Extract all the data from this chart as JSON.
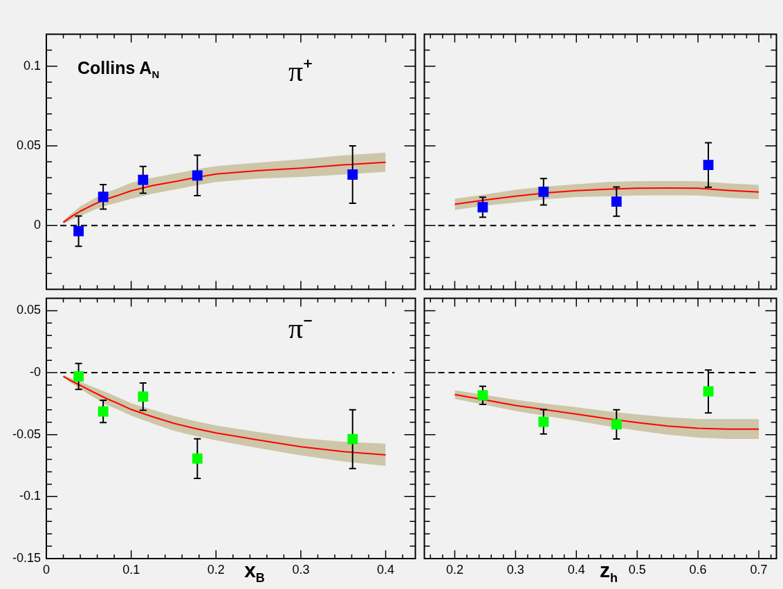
{
  "chart_data": [
    {
      "type": "scatter",
      "xlim": [
        0,
        0.435
      ],
      "ylim": [
        -0.04,
        0.12
      ],
      "tick_labels": "y",
      "marker": "square",
      "grid": false,
      "legend": false,
      "xticks": [
        0,
        {
          "value": 0.02,
          "label": null
        },
        {
          "value": 0.04,
          "label": null
        },
        {
          "value": 0.06,
          "label": null
        },
        {
          "value": 0.08,
          "label": null
        },
        0.1,
        {
          "value": 0.12,
          "label": null
        },
        {
          "value": 0.14,
          "label": null
        },
        {
          "value": 0.16,
          "label": null
        },
        {
          "value": 0.18,
          "label": null
        },
        0.2,
        {
          "value": 0.22,
          "label": null
        },
        {
          "value": 0.24,
          "label": null
        },
        {
          "value": 0.26,
          "label": null
        },
        {
          "value": 0.28,
          "label": null
        },
        0.3,
        {
          "value": 0.32,
          "label": null
        },
        {
          "value": 0.34,
          "label": null
        },
        {
          "value": 0.36,
          "label": null
        },
        {
          "value": 0.38,
          "label": null
        },
        0.4,
        {
          "value": 0.42,
          "label": null
        }
      ],
      "yticks": [
        {
          "value": -0.03,
          "label": null
        },
        {
          "value": -0.02,
          "label": null
        },
        {
          "value": -0.01,
          "label": null
        },
        0,
        {
          "value": 0.01,
          "label": null
        },
        {
          "value": 0.02,
          "label": null
        },
        {
          "value": 0.03,
          "label": null
        },
        {
          "value": 0.04,
          "label": null
        },
        0.05,
        {
          "value": 0.06,
          "label": null
        },
        {
          "value": 0.07,
          "label": null
        },
        {
          "value": 0.08,
          "label": null
        },
        {
          "value": 0.09,
          "label": null
        },
        0.1,
        {
          "value": 0.11,
          "label": null
        }
      ],
      "series": [
        {
          "x": [
            0.038,
            0.067,
            0.114,
            0.178,
            0.361
          ],
          "values": [
            -0.0035,
            0.018,
            0.0287,
            0.0314,
            0.032
          ],
          "errors": [
            0.0095,
            0.0077,
            0.0084,
            0.0127,
            0.018
          ],
          "color": "#0000ff"
        },
        {
          "type": "line",
          "marker": "none",
          "color": "#ff0000",
          "x": [
            0.02,
            0.03,
            0.04,
            0.055,
            0.07,
            0.085,
            0.1,
            0.125,
            0.15,
            0.175,
            0.2,
            0.25,
            0.3,
            0.35,
            0.4
          ],
          "values": [
            0.002,
            0.0058,
            0.009,
            0.013,
            0.0165,
            0.019,
            0.0218,
            0.025,
            0.0274,
            0.03,
            0.0323,
            0.0345,
            0.036,
            0.038,
            0.0397
          ],
          "lower": [
            0.001,
            0.0038,
            0.006,
            0.0095,
            0.0125,
            0.0145,
            0.0168,
            0.02,
            0.0224,
            0.025,
            0.0273,
            0.0295,
            0.0305,
            0.032,
            0.0337
          ],
          "upper": [
            0.003,
            0.0078,
            0.012,
            0.0165,
            0.0205,
            0.0235,
            0.0268,
            0.03,
            0.0324,
            0.035,
            0.0373,
            0.0395,
            0.0415,
            0.044,
            0.0457
          ]
        }
      ],
      "ref_lines": [
        {
          "axis": "y",
          "value": 0,
          "line_style": "dashed",
          "color": "#000000"
        }
      ],
      "annotations": [
        "Collins A$_{N}$",
        "π⁺"
      ]
    },
    {
      "type": "scatter",
      "xlim": [
        0.15,
        0.729
      ],
      "ylim": [
        -0.04,
        0.12
      ],
      "tick_labels": false,
      "marker": "square",
      "grid": false,
      "legend": false,
      "xticks": [
        {
          "value": 0.16,
          "label": null
        },
        {
          "value": 0.18,
          "label": null
        },
        0.2,
        {
          "value": 0.22,
          "label": null
        },
        {
          "value": 0.24,
          "label": null
        },
        {
          "value": 0.26,
          "label": null
        },
        {
          "value": 0.28,
          "label": null
        },
        0.3,
        {
          "value": 0.32,
          "label": null
        },
        {
          "value": 0.34,
          "label": null
        },
        {
          "value": 0.36,
          "label": null
        },
        {
          "value": 0.38,
          "label": null
        },
        0.4,
        {
          "value": 0.42,
          "label": null
        },
        {
          "value": 0.44,
          "label": null
        },
        {
          "value": 0.46,
          "label": null
        },
        {
          "value": 0.48,
          "label": null
        },
        0.5,
        {
          "value": 0.52,
          "label": null
        },
        {
          "value": 0.54,
          "label": null
        },
        {
          "value": 0.56,
          "label": null
        },
        {
          "value": 0.58,
          "label": null
        },
        0.6,
        {
          "value": 0.62,
          "label": null
        },
        {
          "value": 0.64,
          "label": null
        },
        {
          "value": 0.66,
          "label": null
        },
        {
          "value": 0.68,
          "label": null
        },
        0.7,
        {
          "value": 0.72,
          "label": null
        }
      ],
      "yticks": [
        {
          "value": -0.03,
          "label": null
        },
        {
          "value": -0.02,
          "label": null
        },
        {
          "value": -0.01,
          "label": null
        },
        0,
        {
          "value": 0.01,
          "label": null
        },
        {
          "value": 0.02,
          "label": null
        },
        {
          "value": 0.03,
          "label": null
        },
        {
          "value": 0.04,
          "label": null
        },
        0.05,
        {
          "value": 0.06,
          "label": null
        },
        {
          "value": 0.07,
          "label": null
        },
        {
          "value": 0.08,
          "label": null
        },
        {
          "value": 0.09,
          "label": null
        },
        0.1,
        {
          "value": 0.11,
          "label": null
        }
      ],
      "series": [
        {
          "x": [
            0.246,
            0.346,
            0.466,
            0.617
          ],
          "values": [
            0.0115,
            0.0212,
            0.015,
            0.038
          ],
          "errors": [
            0.0063,
            0.0083,
            0.0092,
            0.0139
          ],
          "color": "#0000ff"
        },
        {
          "type": "line",
          "marker": "none",
          "color": "#ff0000",
          "x": [
            0.2,
            0.25,
            0.3,
            0.35,
            0.4,
            0.45,
            0.5,
            0.55,
            0.6,
            0.65,
            0.7
          ],
          "values": [
            0.0133,
            0.016,
            0.0184,
            0.0205,
            0.0219,
            0.0228,
            0.0234,
            0.0235,
            0.0234,
            0.022,
            0.021
          ],
          "lower": [
            0.0098,
            0.0125,
            0.0144,
            0.0165,
            0.0179,
            0.0183,
            0.0189,
            0.019,
            0.0189,
            0.0175,
            0.0165
          ],
          "upper": [
            0.0168,
            0.0195,
            0.0224,
            0.0245,
            0.0259,
            0.0273,
            0.0279,
            0.028,
            0.0279,
            0.0265,
            0.0255
          ]
        }
      ],
      "ref_lines": [
        {
          "axis": "y",
          "value": 0,
          "line_style": "dashed",
          "color": "#000000"
        }
      ]
    },
    {
      "type": "scatter",
      "xlim": [
        0,
        0.435
      ],
      "ylim": [
        -0.15,
        0.06
      ],
      "marker": "square",
      "grid": false,
      "legend": false,
      "xlabel": "x$_{B}$",
      "xticks": [
        0,
        {
          "value": 0.02,
          "label": null
        },
        {
          "value": 0.04,
          "label": null
        },
        {
          "value": 0.06,
          "label": null
        },
        {
          "value": 0.08,
          "label": null
        },
        0.1,
        {
          "value": 0.12,
          "label": null
        },
        {
          "value": 0.14,
          "label": null
        },
        {
          "value": 0.16,
          "label": null
        },
        {
          "value": 0.18,
          "label": null
        },
        0.2,
        {
          "value": 0.22,
          "label": null
        },
        {
          "value": 0.24,
          "label": null
        },
        {
          "value": 0.26,
          "label": null
        },
        {
          "value": 0.28,
          "label": null
        },
        0.3,
        {
          "value": 0.32,
          "label": null
        },
        {
          "value": 0.34,
          "label": null
        },
        {
          "value": 0.36,
          "label": null
        },
        {
          "value": 0.38,
          "label": null
        },
        0.4,
        {
          "value": 0.42,
          "label": null
        }
      ],
      "yticks": [
        -0.15,
        {
          "value": -0.14,
          "label": null
        },
        {
          "value": -0.13,
          "label": null
        },
        {
          "value": -0.12,
          "label": null
        },
        {
          "value": -0.11,
          "label": null
        },
        -0.1,
        {
          "value": -0.09,
          "label": null
        },
        {
          "value": -0.08,
          "label": null
        },
        {
          "value": -0.07,
          "label": null
        },
        {
          "value": -0.06,
          "label": null
        },
        -0.05,
        {
          "value": -0.04,
          "label": null
        },
        {
          "value": -0.03,
          "label": null
        },
        {
          "value": -0.02,
          "label": null
        },
        {
          "value": -0.01,
          "label": null
        },
        {
          "value": 0,
          "label": "-0"
        },
        {
          "value": 0.01,
          "label": null
        },
        {
          "value": 0.02,
          "label": null
        },
        {
          "value": 0.03,
          "label": null
        },
        {
          "value": 0.04,
          "label": null
        },
        0.05
      ],
      "series": [
        {
          "x": [
            0.038,
            0.067,
            0.114,
            0.178,
            0.361
          ],
          "values": [
            -0.003,
            -0.0313,
            -0.0193,
            -0.0693,
            -0.0536
          ],
          "errors": [
            0.0105,
            0.009,
            0.011,
            0.016,
            0.0237
          ],
          "color": "#00ff00"
        },
        {
          "type": "line",
          "marker": "none",
          "color": "#ff0000",
          "x": [
            0.02,
            0.03,
            0.04,
            0.055,
            0.07,
            0.085,
            0.1,
            0.125,
            0.15,
            0.175,
            0.2,
            0.25,
            0.3,
            0.35,
            0.4
          ],
          "values": [
            -0.003,
            -0.0068,
            -0.0102,
            -0.0155,
            -0.0206,
            -0.025,
            -0.0297,
            -0.0355,
            -0.0408,
            -0.045,
            -0.0486,
            -0.0544,
            -0.0598,
            -0.0637,
            -0.0663
          ],
          "lower": [
            -0.004,
            -0.0088,
            -0.0132,
            -0.0195,
            -0.0256,
            -0.03,
            -0.0347,
            -0.041,
            -0.0468,
            -0.051,
            -0.0546,
            -0.0609,
            -0.0668,
            -0.0717,
            -0.0753
          ],
          "upper": [
            -0.002,
            -0.0048,
            -0.0072,
            -0.0115,
            -0.0156,
            -0.02,
            -0.0247,
            -0.03,
            -0.0348,
            -0.039,
            -0.0426,
            -0.0479,
            -0.0528,
            -0.0557,
            -0.0573
          ]
        }
      ],
      "ref_lines": [
        {
          "axis": "y",
          "value": 0,
          "line_style": "dashed",
          "color": "#000000"
        }
      ],
      "annotations": [
        "π⁻"
      ]
    },
    {
      "type": "scatter",
      "xlim": [
        0.15,
        0.729
      ],
      "ylim": [
        -0.15,
        0.06
      ],
      "tick_labels": "x",
      "marker": "square",
      "grid": false,
      "legend": false,
      "xlabel": "z$_{h}$",
      "xticks": [
        {
          "value": 0.16,
          "label": null
        },
        {
          "value": 0.18,
          "label": null
        },
        0.2,
        {
          "value": 0.22,
          "label": null
        },
        {
          "value": 0.24,
          "label": null
        },
        {
          "value": 0.26,
          "label": null
        },
        {
          "value": 0.28,
          "label": null
        },
        0.3,
        {
          "value": 0.32,
          "label": null
        },
        {
          "value": 0.34,
          "label": null
        },
        {
          "value": 0.36,
          "label": null
        },
        {
          "value": 0.38,
          "label": null
        },
        0.4,
        {
          "value": 0.42,
          "label": null
        },
        {
          "value": 0.44,
          "label": null
        },
        {
          "value": 0.46,
          "label": null
        },
        {
          "value": 0.48,
          "label": null
        },
        0.5,
        {
          "value": 0.52,
          "label": null
        },
        {
          "value": 0.54,
          "label": null
        },
        {
          "value": 0.56,
          "label": null
        },
        {
          "value": 0.58,
          "label": null
        },
        0.6,
        {
          "value": 0.62,
          "label": null
        },
        {
          "value": 0.64,
          "label": null
        },
        {
          "value": 0.66,
          "label": null
        },
        {
          "value": 0.68,
          "label": null
        },
        0.7,
        {
          "value": 0.72,
          "label": null
        }
      ],
      "yticks": [
        -0.15,
        {
          "value": -0.14,
          "label": null
        },
        {
          "value": -0.13,
          "label": null
        },
        {
          "value": -0.12,
          "label": null
        },
        {
          "value": -0.11,
          "label": null
        },
        -0.1,
        {
          "value": -0.09,
          "label": null
        },
        {
          "value": -0.08,
          "label": null
        },
        {
          "value": -0.07,
          "label": null
        },
        {
          "value": -0.06,
          "label": null
        },
        -0.05,
        {
          "value": -0.04,
          "label": null
        },
        {
          "value": -0.03,
          "label": null
        },
        {
          "value": -0.02,
          "label": null
        },
        {
          "value": -0.01,
          "label": null
        },
        0,
        {
          "value": 0.01,
          "label": null
        },
        {
          "value": 0.02,
          "label": null
        },
        {
          "value": 0.03,
          "label": null
        },
        {
          "value": 0.04,
          "label": null
        },
        0.05
      ],
      "series": [
        {
          "x": [
            0.246,
            0.346,
            0.466,
            0.617
          ],
          "values": [
            -0.0183,
            -0.0396,
            -0.0417,
            -0.0151
          ],
          "errors": [
            0.0073,
            0.0098,
            0.0118,
            0.0173
          ],
          "color": "#00ff00"
        },
        {
          "type": "line",
          "marker": "none",
          "color": "#ff0000",
          "x": [
            0.2,
            0.25,
            0.3,
            0.35,
            0.4,
            0.45,
            0.5,
            0.55,
            0.6,
            0.65,
            0.7
          ],
          "values": [
            -0.0177,
            -0.022,
            -0.0264,
            -0.03,
            -0.0334,
            -0.037,
            -0.0402,
            -0.043,
            -0.0449,
            -0.0455,
            -0.0455
          ],
          "lower": [
            -0.0212,
            -0.026,
            -0.0309,
            -0.035,
            -0.0389,
            -0.043,
            -0.0467,
            -0.05,
            -0.0524,
            -0.0535,
            -0.0535
          ],
          "upper": [
            -0.0142,
            -0.018,
            -0.0219,
            -0.025,
            -0.0279,
            -0.031,
            -0.0337,
            -0.036,
            -0.0374,
            -0.0375,
            -0.0375
          ]
        }
      ],
      "ref_lines": [
        {
          "axis": "y",
          "value": 0,
          "line_style": "dashed",
          "color": "#000000"
        }
      ]
    }
  ]
}
